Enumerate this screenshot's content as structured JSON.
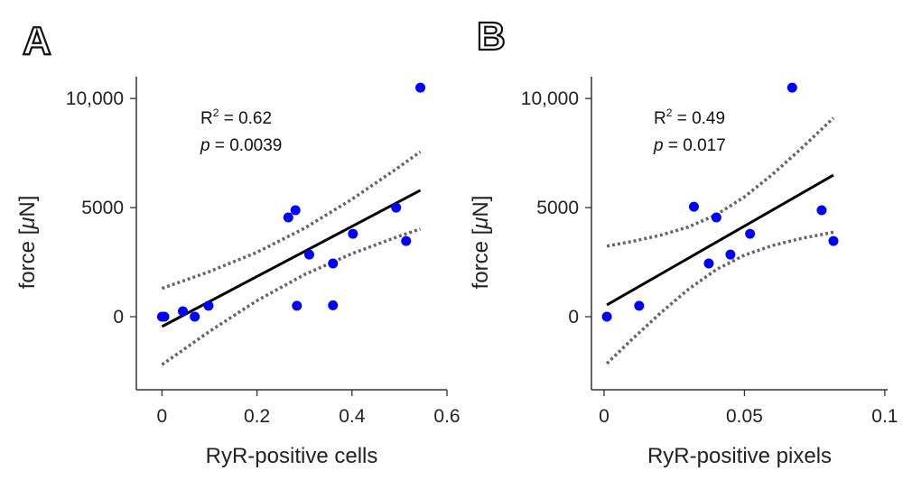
{
  "chart_data": [
    {
      "type": "scatter",
      "panel_label": "A",
      "xlabel": "RyR-positive cells",
      "ylabel": "force [μN]",
      "ylabel_prefix": "force [",
      "ylabel_mu": "μ",
      "ylabel_suffix": "N]",
      "xlim": [
        -0.054,
        0.6
      ],
      "ylim": [
        -3350,
        11000
      ],
      "xticks": [
        0,
        0.2,
        0.4,
        0.6
      ],
      "xtick_labels": [
        "0",
        "0.2",
        "0.4",
        "0.6"
      ],
      "yticks": [
        0,
        5000,
        10000
      ],
      "ytick_labels": [
        "0",
        "5000",
        "10,000"
      ],
      "grid": false,
      "stats": {
        "r2_label": "R",
        "r2_sup": "2",
        "r2_value": " = 0.62",
        "p_label": "p",
        "p_value": " = 0.0039"
      },
      "points": {
        "x": [
          0.0,
          0.005,
          0.044,
          0.069,
          0.098,
          0.266,
          0.281,
          0.284,
          0.31,
          0.36,
          0.36,
          0.402,
          0.493,
          0.514,
          0.544
        ],
        "y": [
          0,
          0,
          250,
          0,
          500,
          4550,
          4880,
          500,
          2850,
          2440,
          520,
          3800,
          5000,
          3470,
          10500
        ]
      },
      "fit": {
        "x": [
          0,
          0.544
        ],
        "y": [
          -450,
          5790
        ]
      },
      "ci": {
        "x": [
          0,
          0.1,
          0.2,
          0.3,
          0.4,
          0.5,
          0.544
        ],
        "upper": [
          1300,
          2067,
          2954,
          4051,
          5385,
          6872,
          7560
        ],
        "lower": [
          -2200,
          -673,
          734,
          1931,
          2891,
          3698,
          4020
        ]
      },
      "colors": {
        "points": "#0000ff",
        "fit": "#000000",
        "ci": "#666666"
      }
    },
    {
      "type": "scatter",
      "panel_label": "B",
      "xlabel": "RyR-positive pixels",
      "ylabel": "force [μN]",
      "ylabel_prefix": "force [",
      "ylabel_mu": "μ",
      "ylabel_suffix": "N]",
      "xlim": [
        -0.0045,
        0.101
      ],
      "ylim": [
        -3350,
        11000
      ],
      "xticks": [
        0,
        0.05,
        0.1
      ],
      "xtick_labels": [
        "0",
        "0.05",
        "0.1"
      ],
      "yticks": [
        0,
        5000,
        10000
      ],
      "ytick_labels": [
        "0",
        "5000",
        "10,000"
      ],
      "grid": false,
      "stats": {
        "r2_label": "R",
        "r2_sup": "2",
        "r2_value": " = 0.49",
        "p_label": "p",
        "p_value": " = 0.017"
      },
      "points": {
        "x": [
          0.001,
          0.0125,
          0.032,
          0.0373,
          0.04,
          0.045,
          0.052,
          0.067,
          0.0775,
          0.0817
        ],
        "y": [
          0,
          500,
          5040,
          2440,
          4550,
          2850,
          3800,
          10500,
          4880,
          3470
        ]
      },
      "fit": {
        "x": [
          0.001,
          0.0817
        ],
        "y": [
          540,
          6490
        ]
      },
      "ci": {
        "x": [
          0.001,
          0.01,
          0.02,
          0.03,
          0.04,
          0.05,
          0.06,
          0.07,
          0.0817
        ],
        "upper": [
          3234,
          3447,
          3730,
          4111,
          4672,
          5488,
          6520,
          7679,
          9112
        ],
        "lower": [
          -2146,
          -1033,
          158,
          1251,
          2164,
          2822,
          3264,
          3579,
          3870
        ]
      },
      "colors": {
        "points": "#0000ff",
        "fit": "#000000",
        "ci": "#666666"
      }
    }
  ]
}
